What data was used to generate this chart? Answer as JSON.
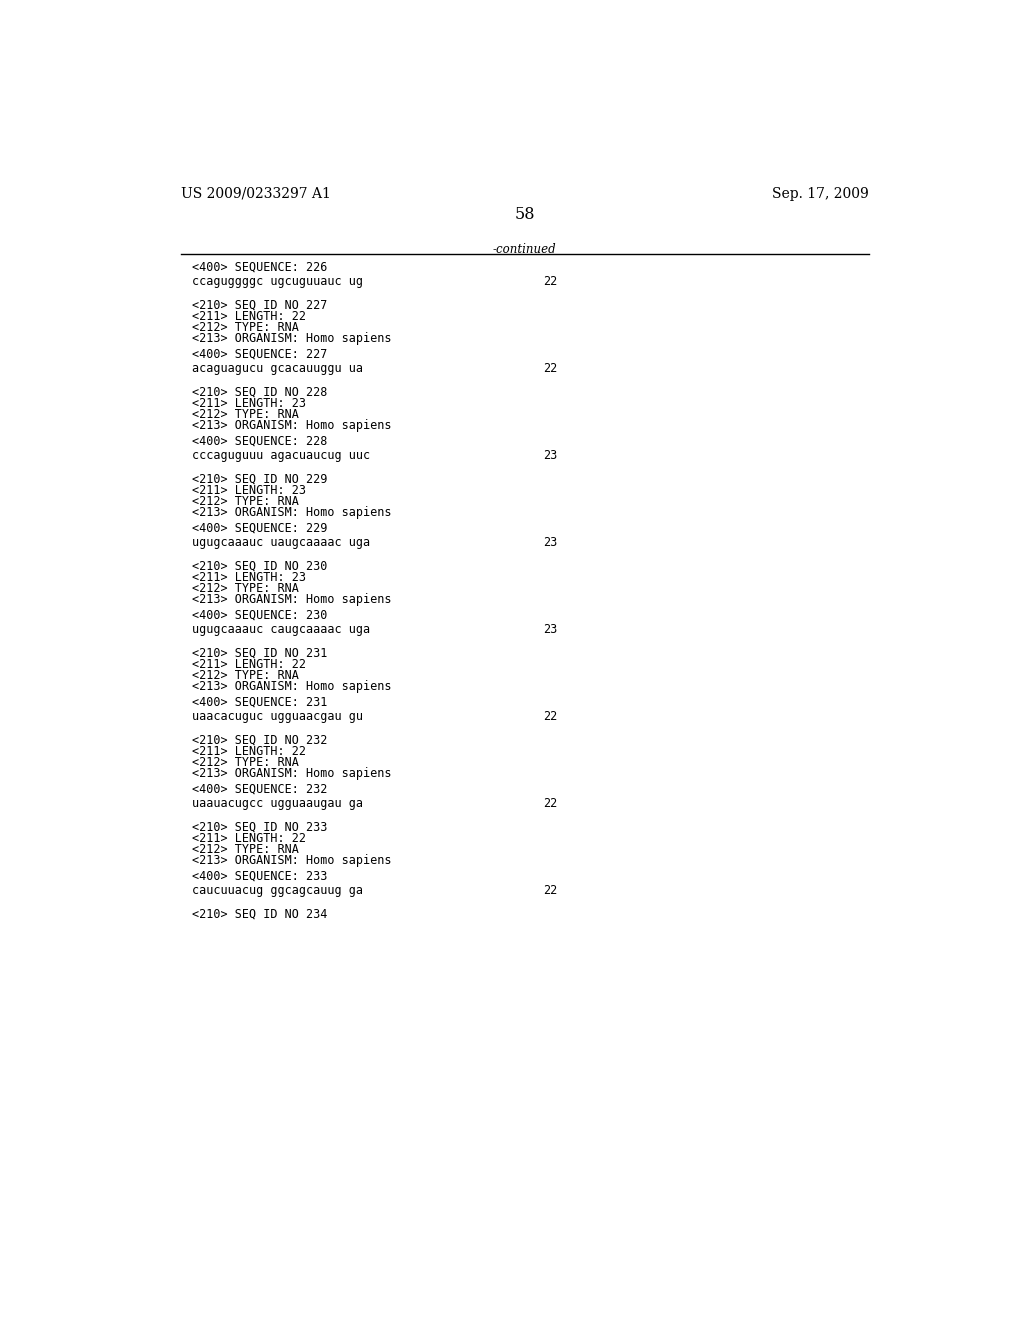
{
  "header_left": "US 2009/0233297 A1",
  "header_right": "Sep. 17, 2009",
  "page_number": "58",
  "continued_label": "-continued",
  "background_color": "#ffffff",
  "text_color": "#000000",
  "font_size_header": 10.0,
  "font_size_body": 8.5,
  "font_size_page": 11.5,
  "lines": [
    {
      "type": "seq_tag",
      "text": "<400> SEQUENCE: 226"
    },
    {
      "type": "blank_small"
    },
    {
      "type": "sequence",
      "left": "ccaguggggc ugcuguuauc ug",
      "right": "22"
    },
    {
      "type": "blank_large"
    },
    {
      "type": "meta",
      "lines": [
        "<210> SEQ ID NO 227",
        "<211> LENGTH: 22",
        "<212> TYPE: RNA",
        "<213> ORGANISM: Homo sapiens"
      ]
    },
    {
      "type": "blank_small"
    },
    {
      "type": "seq_tag",
      "text": "<400> SEQUENCE: 227"
    },
    {
      "type": "blank_small"
    },
    {
      "type": "sequence",
      "left": "acaguagucu gcacauuggu ua",
      "right": "22"
    },
    {
      "type": "blank_large"
    },
    {
      "type": "meta",
      "lines": [
        "<210> SEQ ID NO 228",
        "<211> LENGTH: 23",
        "<212> TYPE: RNA",
        "<213> ORGANISM: Homo sapiens"
      ]
    },
    {
      "type": "blank_small"
    },
    {
      "type": "seq_tag",
      "text": "<400> SEQUENCE: 228"
    },
    {
      "type": "blank_small"
    },
    {
      "type": "sequence",
      "left": "cccaguguuu agacuaucug uuc",
      "right": "23"
    },
    {
      "type": "blank_large"
    },
    {
      "type": "meta",
      "lines": [
        "<210> SEQ ID NO 229",
        "<211> LENGTH: 23",
        "<212> TYPE: RNA",
        "<213> ORGANISM: Homo sapiens"
      ]
    },
    {
      "type": "blank_small"
    },
    {
      "type": "seq_tag",
      "text": "<400> SEQUENCE: 229"
    },
    {
      "type": "blank_small"
    },
    {
      "type": "sequence",
      "left": "ugugcaaauc uaugcaaaac uga",
      "right": "23"
    },
    {
      "type": "blank_large"
    },
    {
      "type": "meta",
      "lines": [
        "<210> SEQ ID NO 230",
        "<211> LENGTH: 23",
        "<212> TYPE: RNA",
        "<213> ORGANISM: Homo sapiens"
      ]
    },
    {
      "type": "blank_small"
    },
    {
      "type": "seq_tag",
      "text": "<400> SEQUENCE: 230"
    },
    {
      "type": "blank_small"
    },
    {
      "type": "sequence",
      "left": "ugugcaaauc caugcaaaac uga",
      "right": "23"
    },
    {
      "type": "blank_large"
    },
    {
      "type": "meta",
      "lines": [
        "<210> SEQ ID NO 231",
        "<211> LENGTH: 22",
        "<212> TYPE: RNA",
        "<213> ORGANISM: Homo sapiens"
      ]
    },
    {
      "type": "blank_small"
    },
    {
      "type": "seq_tag",
      "text": "<400> SEQUENCE: 231"
    },
    {
      "type": "blank_small"
    },
    {
      "type": "sequence",
      "left": "uaacacuguc ugguaacgau gu",
      "right": "22"
    },
    {
      "type": "blank_large"
    },
    {
      "type": "meta",
      "lines": [
        "<210> SEQ ID NO 232",
        "<211> LENGTH: 22",
        "<212> TYPE: RNA",
        "<213> ORGANISM: Homo sapiens"
      ]
    },
    {
      "type": "blank_small"
    },
    {
      "type": "seq_tag",
      "text": "<400> SEQUENCE: 232"
    },
    {
      "type": "blank_small"
    },
    {
      "type": "sequence",
      "left": "uaauacugcc ugguaaugau ga",
      "right": "22"
    },
    {
      "type": "blank_large"
    },
    {
      "type": "meta",
      "lines": [
        "<210> SEQ ID NO 233",
        "<211> LENGTH: 22",
        "<212> TYPE: RNA",
        "<213> ORGANISM: Homo sapiens"
      ]
    },
    {
      "type": "blank_small"
    },
    {
      "type": "seq_tag",
      "text": "<400> SEQUENCE: 233"
    },
    {
      "type": "blank_small"
    },
    {
      "type": "sequence",
      "left": "caucuuacug ggcagcauug ga",
      "right": "22"
    },
    {
      "type": "blank_large"
    },
    {
      "type": "seq_tag_only",
      "text": "<210> SEQ ID NO 234"
    }
  ]
}
